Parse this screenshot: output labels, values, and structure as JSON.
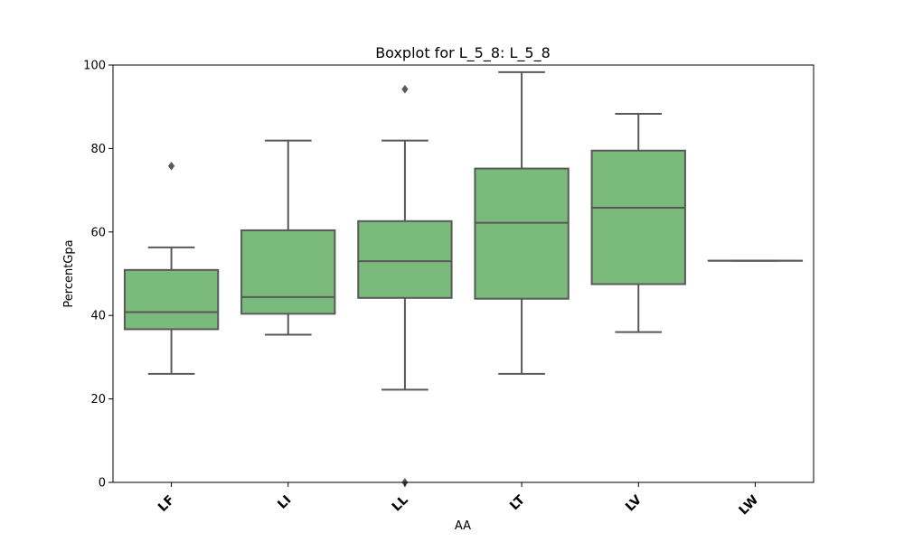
{
  "chart_data": {
    "type": "box",
    "title": "Boxplot for L_5_8: L_5_8",
    "xlabel": "AA",
    "ylabel": "PercentGpa",
    "ylim": [
      0,
      100
    ],
    "yticks": [
      0,
      20,
      40,
      60,
      80,
      100
    ],
    "grid": false,
    "categories": [
      "LF",
      "LI",
      "LL",
      "LT",
      "LV",
      "LW"
    ],
    "boxes": [
      {
        "category": "LF",
        "whisker_low": 26.0,
        "q1": 36.7,
        "median": 40.8,
        "q3": 50.9,
        "whisker_high": 56.3,
        "outliers": [
          75.8
        ]
      },
      {
        "category": "LI",
        "whisker_low": 35.4,
        "q1": 40.4,
        "median": 44.4,
        "q3": 60.4,
        "whisker_high": 81.9,
        "outliers": []
      },
      {
        "category": "LL",
        "whisker_low": 22.2,
        "q1": 44.2,
        "median": 53.0,
        "q3": 62.6,
        "whisker_high": 81.9,
        "outliers": [
          94.2,
          0.0
        ]
      },
      {
        "category": "LT",
        "whisker_low": 26.0,
        "q1": 44.0,
        "median": 62.2,
        "q3": 75.2,
        "whisker_high": 98.3,
        "outliers": []
      },
      {
        "category": "LV",
        "whisker_low": 36.0,
        "q1": 47.5,
        "median": 65.8,
        "q3": 79.5,
        "whisker_high": 88.3,
        "outliers": []
      },
      {
        "category": "LW",
        "whisker_low": 53.1,
        "q1": 53.1,
        "median": 53.1,
        "q3": 53.1,
        "whisker_high": 53.1,
        "outliers": []
      }
    ],
    "colors": {
      "box_fill": "#7aba7b",
      "line": "#595959",
      "axis": "#000000"
    }
  }
}
